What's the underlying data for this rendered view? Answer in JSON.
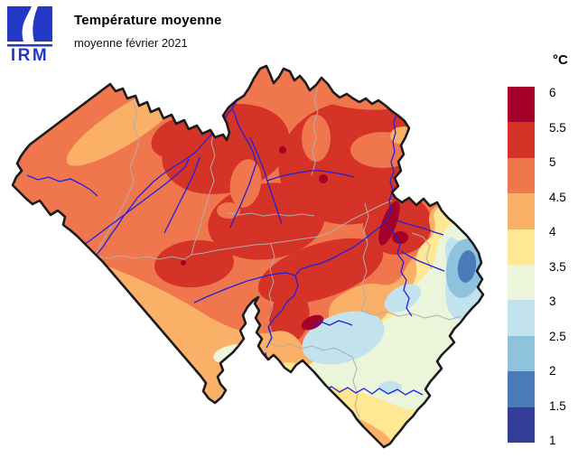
{
  "header": {
    "logo_text": "IRM",
    "title": "Température moyenne",
    "subtitle": "moyenne février 2021"
  },
  "legend": {
    "unit": "°C",
    "tick_labels": [
      "6",
      "5.5",
      "5",
      "4.5",
      "4",
      "3.5",
      "3",
      "2.5",
      "2",
      "1.5",
      "1"
    ],
    "band_colors": [
      "#a30129",
      "#d53327",
      "#ef764d",
      "#fbb067",
      "#ffe793",
      "#ebf5da",
      "#c2e2ee",
      "#8fc2dd",
      "#4a7bb8",
      "#333c99"
    ]
  },
  "map": {
    "country": "Belgium",
    "border_color": "#1c1c1c",
    "province_border_color": "#aeaeae",
    "river_color": "#2121dd",
    "logo_color": "#2438c6"
  },
  "chart_data": {
    "type": "heatmap",
    "title": "Température moyenne",
    "subtitle": "moyenne février 2021",
    "unit": "°C",
    "scale_min": 1,
    "scale_max": 6,
    "scale_step": 0.5,
    "readings": {
      "coast_west_flanders": "4 – 4.5",
      "central_and_northern_belgium": "5 – 5.5",
      "liege_meuse_valley": "5.5 – 6",
      "sambre_meuse_furrow": "5 – 5.5",
      "southern_hainaut": "3.5 – 4.5",
      "condroz_famenne": "3.5 – 4.5",
      "ardennes_plateau": "2.5 – 3.5",
      "hautes_fagnes_east": "1.5 – 2.5",
      "gaume_southern_tip": "3.5 – 4.5"
    }
  }
}
